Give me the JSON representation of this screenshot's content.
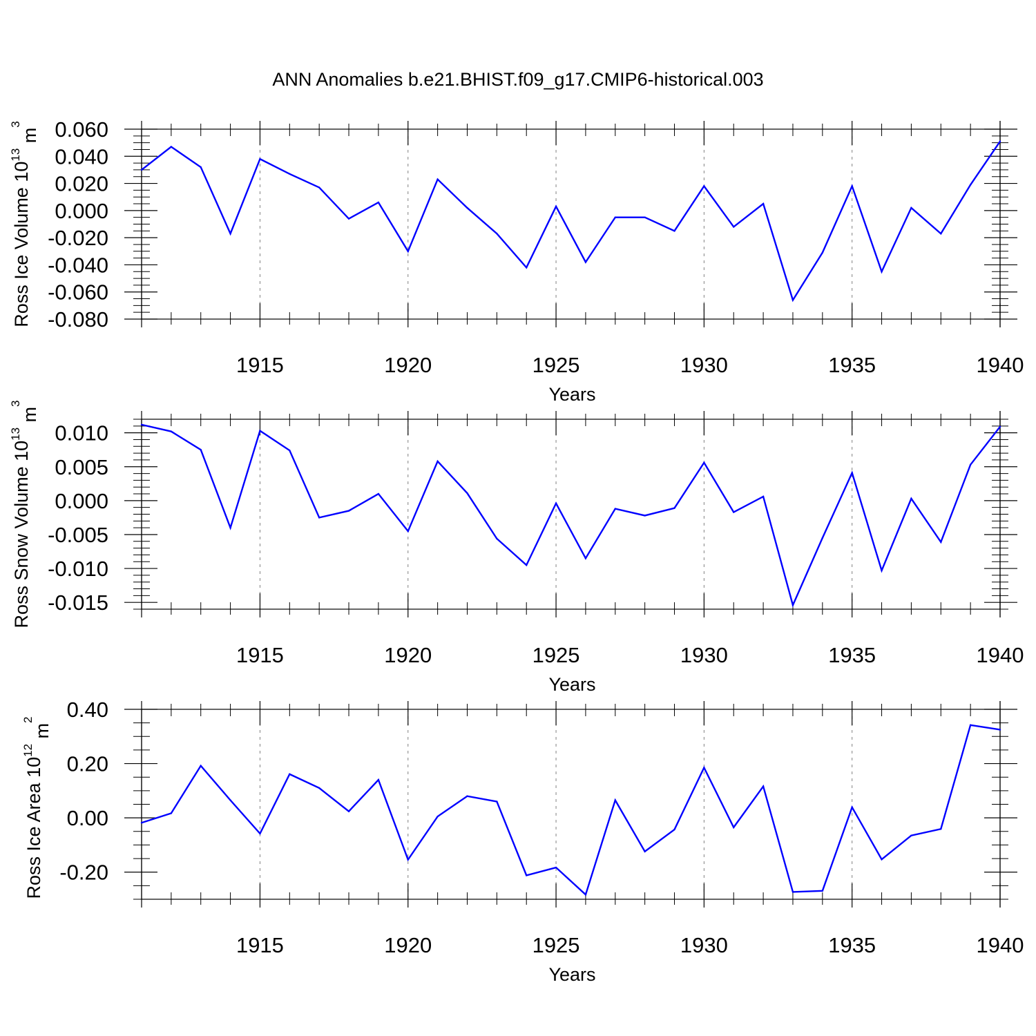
{
  "title": "ANN Anomalies b.e21.BHIST.f09_g17.CMIP6-historical.003",
  "colors": {
    "series": "#0000ff",
    "axes": "#000000",
    "grid": "#808080",
    "background": "#ffffff"
  },
  "chart_data": [
    {
      "type": "line",
      "ylabel": "Ross Ice Volume 10",
      "ylabel_exp": "13",
      "ylabel_unit": " m",
      "ylabel_unit_exp": "3",
      "xlabel": "Years",
      "xlim": [
        1911,
        1940
      ],
      "ylim": [
        -0.08,
        0.07
      ],
      "grid": "vertical dashed at major ticks",
      "x_ticks": [
        1915,
        1920,
        1925,
        1930,
        1935,
        1940
      ],
      "y_ticks": [
        "0.060",
        "0.040",
        "0.020",
        "0.000",
        "-0.020",
        "-0.040",
        "-0.060",
        "-0.080"
      ],
      "y_tick_values": [
        0.06,
        0.04,
        0.02,
        0.0,
        -0.02,
        -0.04,
        -0.06,
        -0.08
      ],
      "y_minor_step": 0.005,
      "x": [
        1911,
        1912,
        1913,
        1914,
        1915,
        1916,
        1917,
        1918,
        1919,
        1920,
        1921,
        1922,
        1923,
        1924,
        1925,
        1926,
        1927,
        1928,
        1929,
        1930,
        1931,
        1932,
        1933,
        1934,
        1935,
        1936,
        1937,
        1938,
        1939,
        1940
      ],
      "values": [
        0.03,
        0.047,
        0.032,
        -0.017,
        0.038,
        0.027,
        0.017,
        -0.006,
        0.006,
        -0.03,
        0.023,
        0.002,
        -0.017,
        -0.042,
        0.003,
        -0.038,
        -0.005,
        -0.005,
        -0.015,
        0.018,
        -0.012,
        0.005,
        -0.066,
        -0.031,
        0.018,
        -0.045,
        0.002,
        -0.017,
        0.019,
        0.051
      ]
    },
    {
      "type": "line",
      "ylabel": "Ross Snow Volume 10",
      "ylabel_exp": "13",
      "ylabel_unit": " m",
      "ylabel_unit_exp": "3",
      "xlabel": "Years",
      "xlim": [
        1911,
        1940
      ],
      "ylim": [
        -0.016,
        0.012
      ],
      "grid": "vertical dashed at major ticks",
      "x_ticks": [
        1915,
        1920,
        1925,
        1930,
        1935,
        1940
      ],
      "y_ticks": [
        "0.010",
        "0.005",
        "0.000",
        "-0.005",
        "-0.010",
        "-0.015"
      ],
      "y_tick_values": [
        0.01,
        0.005,
        0.0,
        -0.005,
        -0.01,
        -0.015
      ],
      "y_minor_step": 0.001,
      "x": [
        1911,
        1912,
        1913,
        1914,
        1915,
        1916,
        1917,
        1918,
        1919,
        1920,
        1921,
        1922,
        1923,
        1924,
        1925,
        1926,
        1927,
        1928,
        1929,
        1930,
        1931,
        1932,
        1933,
        1934,
        1935,
        1936,
        1937,
        1938,
        1939,
        1940
      ],
      "values": [
        0.0112,
        0.0102,
        0.0075,
        -0.004,
        0.0103,
        0.0074,
        -0.0025,
        -0.0015,
        0.001,
        -0.0045,
        0.0058,
        0.0011,
        -0.0056,
        -0.0095,
        -0.0004,
        -0.0085,
        -0.0012,
        -0.0022,
        -0.0011,
        0.0056,
        -0.0017,
        0.0006,
        -0.0154,
        -0.0055,
        0.0041,
        -0.0103,
        0.0003,
        -0.0061,
        0.0053,
        0.0109
      ]
    },
    {
      "type": "line",
      "ylabel": "Ross Ice Area 10",
      "ylabel_exp": "12",
      "ylabel_unit": " m",
      "ylabel_unit_exp": "2",
      "xlabel": "Years",
      "xlim": [
        1911,
        1940
      ],
      "ylim": [
        -0.3,
        0.4
      ],
      "grid": "vertical dashed at major ticks",
      "x_ticks": [
        1915,
        1920,
        1925,
        1930,
        1935,
        1940
      ],
      "y_ticks": [
        "0.40",
        "0.20",
        "0.00",
        "-0.20"
      ],
      "y_tick_values": [
        0.4,
        0.2,
        0.0,
        -0.2
      ],
      "y_minor_step": 0.05,
      "x": [
        1911,
        1912,
        1913,
        1914,
        1915,
        1916,
        1917,
        1918,
        1919,
        1920,
        1921,
        1922,
        1923,
        1924,
        1925,
        1926,
        1927,
        1928,
        1929,
        1930,
        1931,
        1932,
        1933,
        1934,
        1935,
        1936,
        1937,
        1938,
        1939,
        1940
      ],
      "values": [
        -0.018,
        0.017,
        0.192,
        0.065,
        -0.058,
        0.161,
        0.11,
        0.024,
        0.14,
        -0.154,
        0.005,
        0.08,
        0.06,
        -0.212,
        -0.183,
        -0.283,
        0.065,
        -0.124,
        -0.043,
        0.185,
        -0.035,
        0.116,
        -0.273,
        -0.269,
        0.039,
        -0.153,
        -0.065,
        -0.041,
        0.342,
        0.325
      ]
    }
  ]
}
